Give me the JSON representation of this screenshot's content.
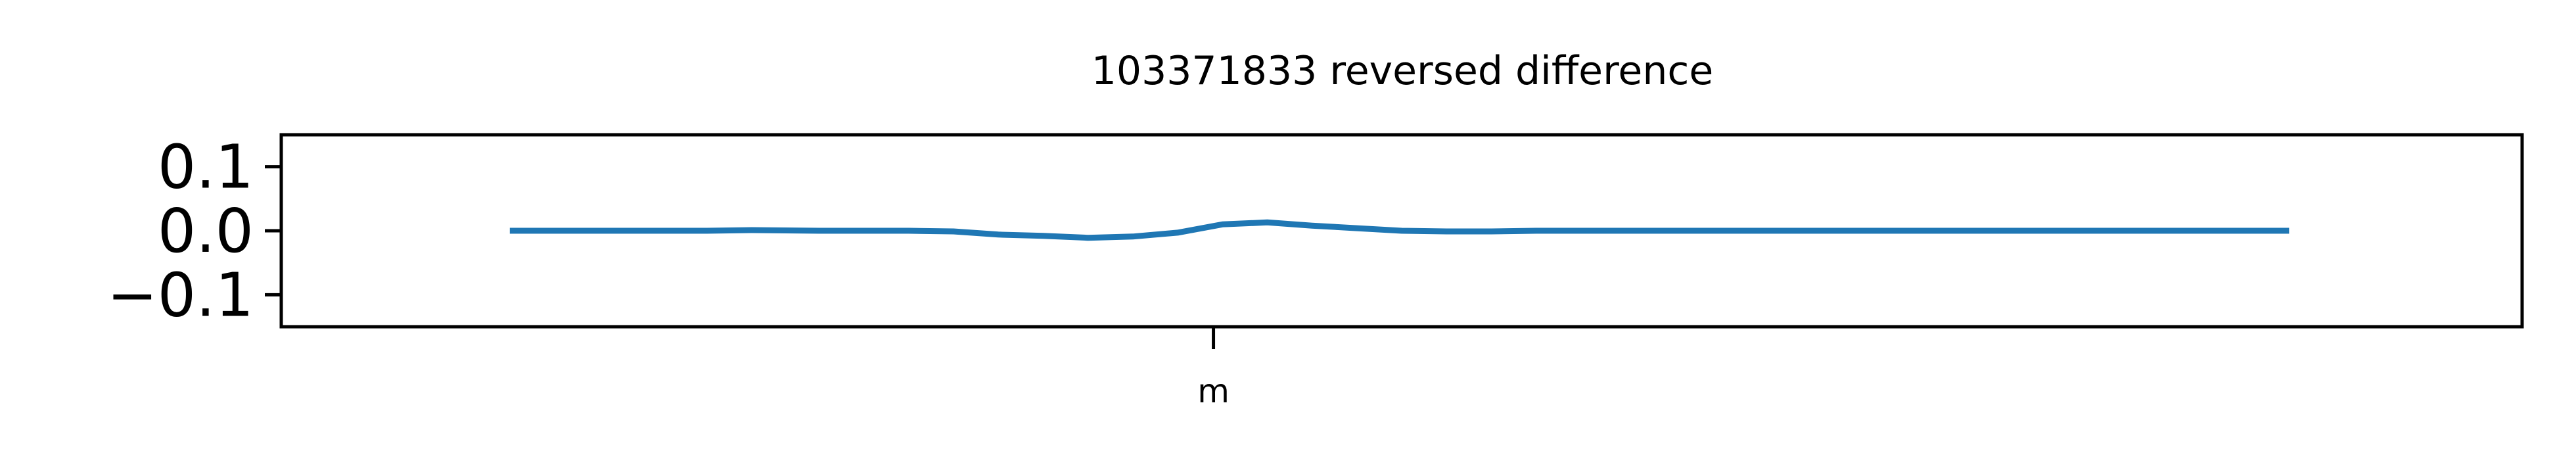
{
  "chart_data": {
    "type": "line",
    "title": "103371833 reversed difference",
    "xlabel": "",
    "ylabel": "",
    "ylim": [
      -0.15,
      0.15
    ],
    "yticks": [
      {
        "value": 0.1,
        "label": "0.1"
      },
      {
        "value": 0.0,
        "label": "0.0"
      },
      {
        "value": -0.1,
        "label": "−0.1"
      }
    ],
    "xlim": [
      0,
      100
    ],
    "xticks": [
      {
        "value": 41.6,
        "label": "m"
      }
    ],
    "grid": false,
    "legend": "none",
    "series": [
      {
        "color": "#1f77b4",
        "x": [
          10.2,
          13,
          16,
          19,
          21,
          24,
          26,
          28,
          30,
          32,
          34,
          36,
          38,
          40,
          42,
          44,
          46,
          48,
          50,
          52,
          54,
          56,
          58,
          60,
          62,
          64,
          66,
          68,
          70,
          72,
          74,
          76,
          78,
          80,
          82,
          84,
          86,
          88,
          89.6
        ],
        "y": [
          0.0,
          0.0,
          0.0,
          0.0,
          0.001,
          0.0,
          0.0,
          0.0,
          -0.001,
          -0.006,
          -0.008,
          -0.011,
          -0.009,
          -0.003,
          0.01,
          0.013,
          0.008,
          0.004,
          0.0,
          -0.001,
          -0.001,
          0.0,
          0.0,
          0.0,
          0.0,
          0.0,
          0.0,
          0.0,
          0.0,
          0.0,
          0.0,
          0.0,
          0.0,
          0.0,
          0.0,
          0.0,
          0.0,
          0.0,
          0.0
        ]
      }
    ]
  }
}
